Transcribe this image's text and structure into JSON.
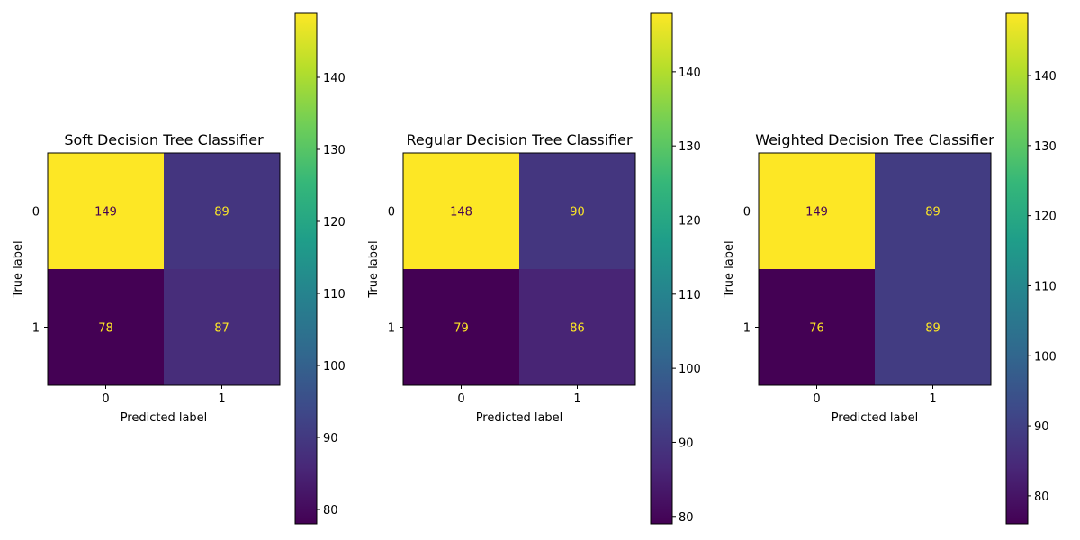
{
  "chart_data": [
    {
      "type": "heatmap",
      "title": "Soft Decision Tree Classifier",
      "xlabel": "Predicted label",
      "ylabel": "True label",
      "x_ticks": [
        "0",
        "1"
      ],
      "y_ticks": [
        "0",
        "1"
      ],
      "matrix": [
        [
          149,
          89
        ],
        [
          78,
          87
        ]
      ],
      "colorbar": {
        "range": [
          78,
          149
        ],
        "ticks": [
          80,
          90,
          100,
          110,
          120,
          130,
          140
        ]
      }
    },
    {
      "type": "heatmap",
      "title": "Regular Decision Tree Classifier",
      "xlabel": "Predicted label",
      "ylabel": "True label",
      "x_ticks": [
        "0",
        "1"
      ],
      "y_ticks": [
        "0",
        "1"
      ],
      "matrix": [
        [
          148,
          90
        ],
        [
          79,
          86
        ]
      ],
      "colorbar": {
        "range": [
          79,
          148
        ],
        "ticks": [
          80,
          90,
          100,
          110,
          120,
          130,
          140
        ]
      }
    },
    {
      "type": "heatmap",
      "title": "Weighted Decision Tree Classifier",
      "xlabel": "Predicted label",
      "ylabel": "True label",
      "x_ticks": [
        "0",
        "1"
      ],
      "y_ticks": [
        "0",
        "1"
      ],
      "matrix": [
        [
          149,
          89
        ],
        [
          76,
          89
        ]
      ],
      "colorbar": {
        "range": [
          76,
          149
        ],
        "ticks": [
          80,
          90,
          100,
          110,
          120,
          130,
          140
        ]
      }
    }
  ],
  "colormap": "viridis",
  "annotation_colors": {
    "on_dark": "#fde725",
    "on_light": "#440154"
  }
}
